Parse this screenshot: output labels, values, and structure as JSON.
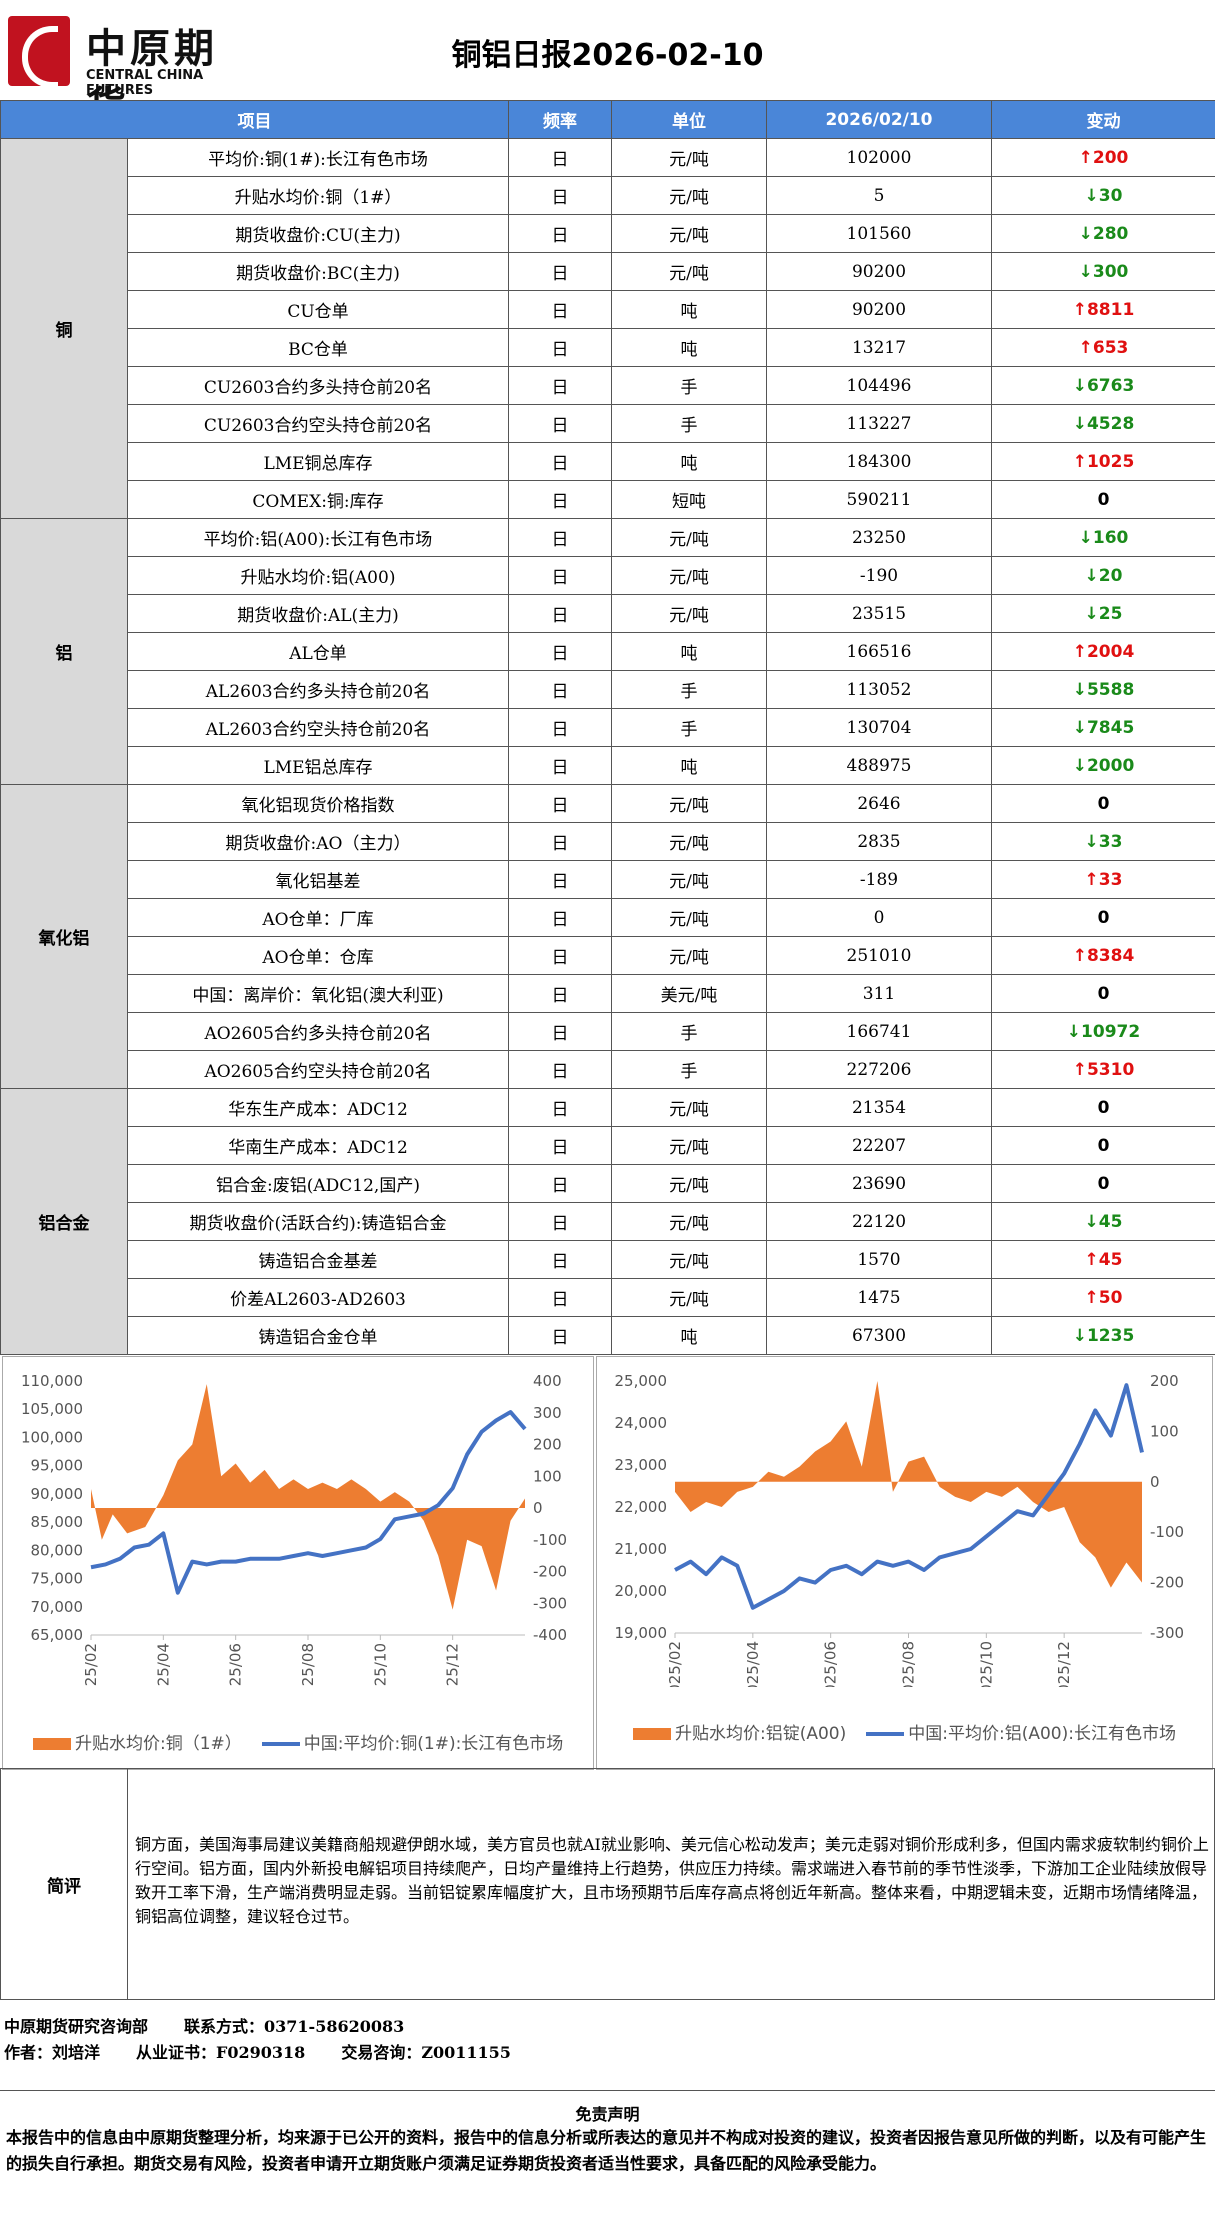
{
  "header": {
    "logo_cn": "中原期貨",
    "logo_en": "CENTRAL CHINA FUTURES",
    "title": "铜铝日报2026-02-10"
  },
  "table": {
    "columns": [
      "项目",
      "频率",
      "单位",
      "2026/02/10",
      "变动"
    ],
    "groups": [
      {
        "category": "铜",
        "rows": [
          {
            "item": "平均价:铜(1#):长江有色市场",
            "freq": "日",
            "unit": "元/吨",
            "value": "102000",
            "change": "200",
            "dir": "up"
          },
          {
            "item": "升贴水均价:铜（1#）",
            "freq": "日",
            "unit": "元/吨",
            "value": "5",
            "change": "30",
            "dir": "down"
          },
          {
            "item": "期货收盘价:CU(主力)",
            "freq": "日",
            "unit": "元/吨",
            "value": "101560",
            "change": "280",
            "dir": "down"
          },
          {
            "item": "期货收盘价:BC(主力)",
            "freq": "日",
            "unit": "元/吨",
            "value": "90200",
            "change": "300",
            "dir": "down"
          },
          {
            "item": "CU仓单",
            "freq": "日",
            "unit": "吨",
            "value": "90200",
            "change": "8811",
            "dir": "up"
          },
          {
            "item": "BC仓单",
            "freq": "日",
            "unit": "吨",
            "value": "13217",
            "change": "653",
            "dir": "up"
          },
          {
            "item": "CU2603合约多头持仓前20名",
            "freq": "日",
            "unit": "手",
            "value": "104496",
            "change": "6763",
            "dir": "down"
          },
          {
            "item": "CU2603合约空头持仓前20名",
            "freq": "日",
            "unit": "手",
            "value": "113227",
            "change": "4528",
            "dir": "down"
          },
          {
            "item": "LME铜总库存",
            "freq": "日",
            "unit": "吨",
            "value": "184300",
            "change": "1025",
            "dir": "up"
          },
          {
            "item": "COMEX:铜:库存",
            "freq": "日",
            "unit": "短吨",
            "value": "590211",
            "change": "0",
            "dir": "flat"
          }
        ]
      },
      {
        "category": "铝",
        "rows": [
          {
            "item": "平均价:铝(A00):长江有色市场",
            "freq": "日",
            "unit": "元/吨",
            "value": "23250",
            "change": "160",
            "dir": "down"
          },
          {
            "item": "升贴水均价:铝(A00)",
            "freq": "日",
            "unit": "元/吨",
            "value": "-190",
            "change": "20",
            "dir": "down"
          },
          {
            "item": "期货收盘价:AL(主力)",
            "freq": "日",
            "unit": "元/吨",
            "value": "23515",
            "change": "25",
            "dir": "down"
          },
          {
            "item": "AL仓单",
            "freq": "日",
            "unit": "吨",
            "value": "166516",
            "change": "2004",
            "dir": "up"
          },
          {
            "item": "AL2603合约多头持仓前20名",
            "freq": "日",
            "unit": "手",
            "value": "113052",
            "change": "5588",
            "dir": "down"
          },
          {
            "item": "AL2603合约空头持仓前20名",
            "freq": "日",
            "unit": "手",
            "value": "130704",
            "change": "7845",
            "dir": "down"
          },
          {
            "item": "LME铝总库存",
            "freq": "日",
            "unit": "吨",
            "value": "488975",
            "change": "2000",
            "dir": "down"
          }
        ]
      },
      {
        "category": "氧化铝",
        "rows": [
          {
            "item": "氧化铝现货价格指数",
            "freq": "日",
            "unit": "元/吨",
            "value": "2646",
            "change": "0",
            "dir": "flat"
          },
          {
            "item": "期货收盘价:AO（主力）",
            "freq": "日",
            "unit": "元/吨",
            "value": "2835",
            "change": "33",
            "dir": "down"
          },
          {
            "item": "氧化铝基差",
            "freq": "日",
            "unit": "元/吨",
            "value": "-189",
            "change": "33",
            "dir": "up"
          },
          {
            "item": "AO仓单：厂库",
            "freq": "日",
            "unit": "元/吨",
            "value": "0",
            "change": "0",
            "dir": "flat"
          },
          {
            "item": "AO仓单：仓库",
            "freq": "日",
            "unit": "元/吨",
            "value": "251010",
            "change": "8384",
            "dir": "up"
          },
          {
            "item": "中国：离岸价：氧化铝(澳大利亚)",
            "freq": "日",
            "unit": "美元/吨",
            "value": "311",
            "change": "0",
            "dir": "flat"
          },
          {
            "item": "AO2605合约多头持仓前20名",
            "freq": "日",
            "unit": "手",
            "value": "166741",
            "change": "10972",
            "dir": "down"
          },
          {
            "item": "AO2605合约空头持仓前20名",
            "freq": "日",
            "unit": "手",
            "value": "227206",
            "change": "5310",
            "dir": "up"
          }
        ]
      },
      {
        "category": "铝合金",
        "rows": [
          {
            "item": "华东生产成本：ADC12",
            "freq": "日",
            "unit": "元/吨",
            "value": "21354",
            "change": "0",
            "dir": "flat"
          },
          {
            "item": "华南生产成本：ADC12",
            "freq": "日",
            "unit": "元/吨",
            "value": "22207",
            "change": "0",
            "dir": "flat"
          },
          {
            "item": "铝合金:废铝(ADC12,国产)",
            "freq": "日",
            "unit": "元/吨",
            "value": "23690",
            "change": "0",
            "dir": "flat"
          },
          {
            "item": "期货收盘价(活跃合约):铸造铝合金",
            "freq": "日",
            "unit": "元/吨",
            "value": "22120",
            "change": "45",
            "dir": "down"
          },
          {
            "item": "铸造铝合金基差",
            "freq": "日",
            "unit": "元/吨",
            "value": "1570",
            "change": "45",
            "dir": "up"
          },
          {
            "item": "价差AL2603-AD2603",
            "freq": "日",
            "unit": "元/吨",
            "value": "1475",
            "change": "50",
            "dir": "up"
          },
          {
            "item": "铸造铝合金仓单",
            "freq": "日",
            "unit": "吨",
            "value": "67300",
            "change": "1235",
            "dir": "down"
          }
        ]
      }
    ]
  },
  "chart_data": [
    {
      "type": "line",
      "title": "",
      "x_ticks": [
        "2025/02",
        "2025/04",
        "2025/06",
        "2025/08",
        "2025/10",
        "2025/12"
      ],
      "y_left_ticks": [
        "65,000",
        "70,000",
        "75,000",
        "80,000",
        "85,000",
        "90,000",
        "95,000",
        "100,000",
        "105,000",
        "110,000"
      ],
      "y_right_ticks": [
        "-400",
        "-300",
        "-200",
        "-100",
        "0",
        "100",
        "200",
        "300",
        "400"
      ],
      "ylim_left": [
        65000,
        110000
      ],
      "ylim_right": [
        -400,
        400
      ],
      "series": [
        {
          "name": "升贴水均价:铜（1#）",
          "kind": "area",
          "axis": "right",
          "color": "#ed7d31",
          "x": [
            0,
            0.3,
            0.6,
            1.0,
            1.5,
            2.0,
            2.4,
            2.8,
            3.2,
            3.6,
            4.0,
            4.4,
            4.8,
            5.2,
            5.6,
            6.0,
            6.4,
            6.8,
            7.2,
            7.6,
            8.0,
            8.4,
            8.8,
            9.2,
            9.6,
            10.0,
            10.4,
            10.8,
            11.2,
            11.6,
            12.0
          ],
          "values": [
            60,
            -100,
            -20,
            -80,
            -60,
            40,
            150,
            200,
            390,
            100,
            140,
            80,
            120,
            60,
            90,
            60,
            80,
            60,
            90,
            60,
            20,
            50,
            20,
            -40,
            -150,
            -320,
            -100,
            -120,
            -260,
            -40,
            30
          ]
        },
        {
          "name": "中国:平均价:铜(1#):长江有色市场",
          "kind": "line",
          "axis": "left",
          "color": "#4472c4",
          "x": [
            0,
            0.4,
            0.8,
            1.2,
            1.6,
            2.0,
            2.4,
            2.8,
            3.2,
            3.6,
            4.0,
            4.4,
            4.8,
            5.2,
            5.6,
            6.0,
            6.4,
            6.8,
            7.2,
            7.6,
            8.0,
            8.4,
            8.8,
            9.2,
            9.6,
            10.0,
            10.4,
            10.8,
            11.2,
            11.6,
            12.0
          ],
          "values": [
            77000,
            77500,
            78500,
            80500,
            81000,
            83000,
            72500,
            78000,
            77500,
            78000,
            78000,
            78500,
            78500,
            78500,
            79000,
            79500,
            79000,
            79500,
            80000,
            80500,
            82000,
            85500,
            86000,
            86500,
            88000,
            91000,
            97000,
            101000,
            103000,
            104500,
            101500
          ]
        }
      ]
    },
    {
      "type": "line",
      "title": "",
      "x_ticks": [
        "2025/02",
        "2025/04",
        "2025/06",
        "2025/08",
        "2025/10",
        "2025/12"
      ],
      "y_left_ticks": [
        "19,000",
        "20,000",
        "21,000",
        "22,000",
        "23,000",
        "24,000",
        "25,000"
      ],
      "y_right_ticks": [
        "-300",
        "-200",
        "-100",
        "0",
        "100",
        "200"
      ],
      "ylim_left": [
        19000,
        25000
      ],
      "ylim_right": [
        -300,
        200
      ],
      "series": [
        {
          "name": "升贴水均价:铝锭(A00)",
          "kind": "area",
          "axis": "right",
          "color": "#ed7d31",
          "x": [
            0,
            0.4,
            0.8,
            1.2,
            1.6,
            2.0,
            2.4,
            2.8,
            3.2,
            3.6,
            4.0,
            4.4,
            4.8,
            5.2,
            5.6,
            6.0,
            6.4,
            6.8,
            7.2,
            7.6,
            8.0,
            8.4,
            8.8,
            9.2,
            9.6,
            10.0,
            10.4,
            10.8,
            11.2,
            11.6,
            12.0
          ],
          "values": [
            -20,
            -60,
            -40,
            -50,
            -20,
            -10,
            20,
            10,
            30,
            60,
            80,
            120,
            30,
            200,
            -20,
            40,
            50,
            -10,
            -30,
            -40,
            -20,
            -30,
            -10,
            -40,
            -60,
            -50,
            -120,
            -150,
            -210,
            -160,
            -200
          ]
        },
        {
          "name": "中国:平均价:铝(A00):长江有色市场",
          "kind": "line",
          "axis": "left",
          "color": "#4472c4",
          "x": [
            0,
            0.4,
            0.8,
            1.2,
            1.6,
            2.0,
            2.4,
            2.8,
            3.2,
            3.6,
            4.0,
            4.4,
            4.8,
            5.2,
            5.6,
            6.0,
            6.4,
            6.8,
            7.2,
            7.6,
            8.0,
            8.4,
            8.8,
            9.2,
            9.6,
            10.0,
            10.4,
            10.8,
            11.2,
            11.6,
            12.0
          ],
          "values": [
            20500,
            20700,
            20400,
            20800,
            20600,
            19600,
            19800,
            20000,
            20300,
            20200,
            20500,
            20600,
            20400,
            20700,
            20600,
            20700,
            20500,
            20800,
            20900,
            21000,
            21300,
            21600,
            21900,
            21800,
            22300,
            22800,
            23500,
            24300,
            23700,
            24900,
            23300
          ]
        }
      ]
    }
  ],
  "comment": {
    "label": "简评",
    "text": "铜方面，美国海事局建议美籍商船规避伊朗水域，美方官员也就AI就业影响、美元信心松动发声；美元走弱对铜价形成利多，但国内需求疲软制约铜价上行空间。铝方面，国内外新投电解铝项目持续爬产，日均产量维持上行趋势，供应压力持续。需求端进入春节前的季节性淡季，下游加工企业陆续放假导致开工率下滑，生产端消费明显走弱。当前铝锭累库幅度扩大，且市场预期节后库存高点将创近年新高。整体来看，中期逻辑未变，近期市场情绪降温，铜铝高位调整，建议轻仓过节。"
  },
  "footer": {
    "dept": "中原期货研究咨询部",
    "contact": "联系方式：0371-58620083",
    "author": "作者：刘培洋",
    "cert": "从业证书：F0290318",
    "trade": "交易咨询：Z0011155"
  },
  "disclaimer": {
    "title": "免责声明",
    "text": "本报告中的信息由中原期货整理分析，均来源于已公开的资料，报告中的信息分析或所表达的意见并不构成对投资的建议，投资者因报告意见所做的判断，以及有可能产生的损失自行承担。期货交易有风险，投资者申请开立期货账户须满足证券期货投资者适当性要求，具备匹配的风险承受能力。"
  }
}
